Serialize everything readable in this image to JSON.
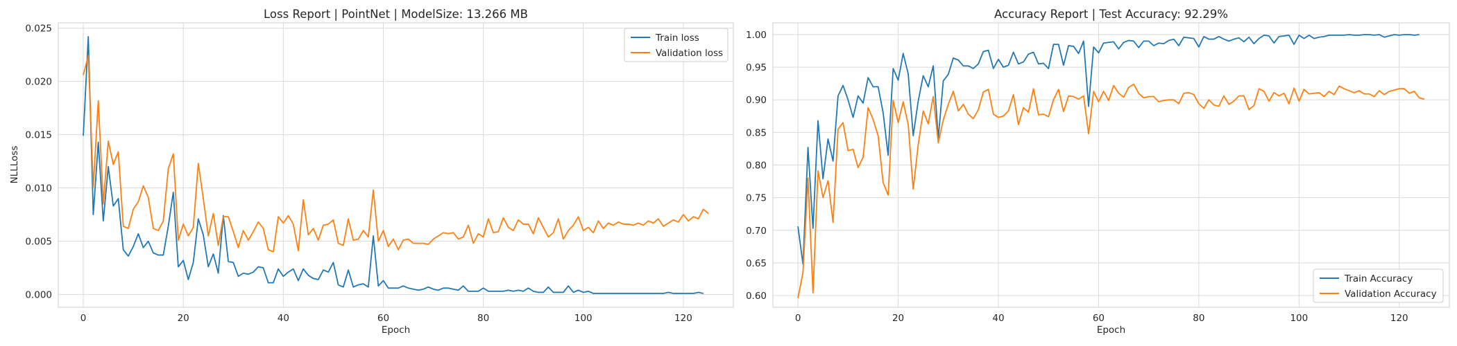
{
  "chart_data": [
    {
      "type": "line",
      "title": "Loss Report | PointNet | ModelSize: 13.266 MB",
      "xlabel": "Epoch",
      "ylabel": "NLLLoss",
      "xlim": [
        -5,
        130
      ],
      "ylim": [
        -0.0012,
        0.0255
      ],
      "xticks": [
        0,
        20,
        40,
        60,
        80,
        100,
        120
      ],
      "yticks": [
        0.0,
        0.005,
        0.01,
        0.015,
        0.02,
        0.025
      ],
      "ytick_labels": [
        "0.000",
        "0.005",
        "0.010",
        "0.015",
        "0.020",
        "0.025"
      ],
      "grid": true,
      "legend_position": "top-right",
      "series": [
        {
          "name": "Train loss",
          "color": "#1f77b4",
          "values": [
            0.0149,
            0.0242,
            0.0075,
            0.0143,
            0.0069,
            0.012,
            0.0083,
            0.009,
            0.0042,
            0.0036,
            0.0045,
            0.0057,
            0.0044,
            0.005,
            0.0039,
            0.0037,
            0.0037,
            0.0064,
            0.0096,
            0.0026,
            0.0032,
            0.0014,
            0.003,
            0.0071,
            0.0056,
            0.0026,
            0.0038,
            0.002,
            0.0074,
            0.0031,
            0.003,
            0.0017,
            0.002,
            0.0019,
            0.0021,
            0.0026,
            0.0025,
            0.0011,
            0.0011,
            0.0024,
            0.0017,
            0.0021,
            0.0024,
            0.0013,
            0.0024,
            0.0018,
            0.0015,
            0.0014,
            0.0023,
            0.0021,
            0.003,
            0.0009,
            0.0007,
            0.0023,
            0.0007,
            0.0009,
            0.001,
            0.0007,
            0.0055,
            0.0008,
            0.0013,
            0.0006,
            0.0006,
            0.0006,
            0.0008,
            0.0006,
            0.0005,
            0.0004,
            0.0005,
            0.0007,
            0.0005,
            0.0004,
            0.0006,
            0.0006,
            0.0005,
            0.0004,
            0.0008,
            0.0003,
            0.0003,
            0.0003,
            0.0006,
            0.0003,
            0.0003,
            0.0003,
            0.0003,
            0.0004,
            0.0003,
            0.0004,
            0.0003,
            0.0006,
            0.0003,
            0.0002,
            0.0002,
            0.0007,
            0.0002,
            0.0002,
            0.0002,
            0.0008,
            0.0002,
            0.0004,
            0.0002,
            0.0003,
            0.0001,
            0.0001,
            0.0001,
            0.0001,
            0.0001,
            0.0001,
            0.0001,
            0.0001,
            0.0001,
            0.0001,
            0.0001,
            0.0001,
            0.0001,
            0.0001,
            0.0001,
            0.0002,
            0.0001,
            0.0001,
            0.0001,
            0.0001,
            0.0001,
            0.0002,
            0.0001
          ]
        },
        {
          "name": "Validation loss",
          "color": "#ff7f0e",
          "values": [
            0.0206,
            0.0224,
            0.0101,
            0.0182,
            0.0085,
            0.0144,
            0.0122,
            0.0134,
            0.0064,
            0.0062,
            0.008,
            0.0087,
            0.0102,
            0.0091,
            0.0062,
            0.006,
            0.0069,
            0.0118,
            0.0132,
            0.0051,
            0.0066,
            0.0055,
            0.0063,
            0.0123,
            0.009,
            0.0055,
            0.0076,
            0.0046,
            0.0073,
            0.0073,
            0.0059,
            0.0044,
            0.006,
            0.0051,
            0.0059,
            0.0068,
            0.0062,
            0.0042,
            0.004,
            0.0073,
            0.0067,
            0.0074,
            0.0066,
            0.0041,
            0.0089,
            0.0056,
            0.0062,
            0.0051,
            0.0065,
            0.0066,
            0.007,
            0.0048,
            0.0046,
            0.0071,
            0.0051,
            0.0052,
            0.006,
            0.0054,
            0.0098,
            0.005,
            0.006,
            0.0045,
            0.0052,
            0.0042,
            0.0051,
            0.0052,
            0.0048,
            0.0048,
            0.0048,
            0.0047,
            0.0052,
            0.0055,
            0.0058,
            0.0057,
            0.0058,
            0.0052,
            0.0054,
            0.0065,
            0.0048,
            0.0057,
            0.0054,
            0.0071,
            0.0058,
            0.0059,
            0.0072,
            0.0063,
            0.006,
            0.007,
            0.0066,
            0.0066,
            0.0057,
            0.0072,
            0.0063,
            0.0054,
            0.0058,
            0.0071,
            0.0052,
            0.006,
            0.0065,
            0.0073,
            0.006,
            0.0063,
            0.0058,
            0.0069,
            0.0062,
            0.0067,
            0.0065,
            0.0068,
            0.0066,
            0.0066,
            0.0065,
            0.0067,
            0.0065,
            0.0069,
            0.0067,
            0.0071,
            0.0064,
            0.0067,
            0.007,
            0.0068,
            0.0075,
            0.0069,
            0.0073,
            0.0071,
            0.008,
            0.0076
          ]
        }
      ]
    },
    {
      "type": "line",
      "title": "Accuracy Report | Test Accuracy: 92.29%",
      "xlabel": "Epoch",
      "ylabel": "",
      "xlim": [
        -5,
        130
      ],
      "ylim": [
        0.582,
        1.018
      ],
      "xticks": [
        0,
        20,
        40,
        60,
        80,
        100,
        120
      ],
      "yticks": [
        0.6,
        0.65,
        0.7,
        0.75,
        0.8,
        0.85,
        0.9,
        0.95,
        1.0
      ],
      "ytick_labels": [
        "0.60",
        "0.65",
        "0.70",
        "0.75",
        "0.80",
        "0.85",
        "0.90",
        "0.95",
        "1.00"
      ],
      "grid": true,
      "legend_position": "bottom-right",
      "series": [
        {
          "name": "Train Accuracy",
          "color": "#1f77b4",
          "values": [
            0.706,
            0.648,
            0.827,
            0.703,
            0.868,
            0.779,
            0.84,
            0.806,
            0.906,
            0.922,
            0.9,
            0.873,
            0.906,
            0.895,
            0.934,
            0.92,
            0.92,
            0.88,
            0.815,
            0.948,
            0.93,
            0.971,
            0.94,
            0.845,
            0.898,
            0.937,
            0.92,
            0.952,
            0.841,
            0.929,
            0.939,
            0.964,
            0.961,
            0.952,
            0.952,
            0.948,
            0.955,
            0.974,
            0.976,
            0.948,
            0.962,
            0.95,
            0.953,
            0.973,
            0.955,
            0.958,
            0.97,
            0.973,
            0.955,
            0.956,
            0.948,
            0.985,
            0.985,
            0.953,
            0.983,
            0.982,
            0.971,
            0.99,
            0.89,
            0.981,
            0.972,
            0.987,
            0.988,
            0.989,
            0.978,
            0.988,
            0.991,
            0.99,
            0.98,
            0.99,
            0.99,
            0.983,
            0.987,
            0.986,
            0.991,
            0.993,
            0.983,
            0.996,
            0.995,
            0.994,
            0.981,
            0.997,
            0.993,
            0.993,
            0.997,
            0.993,
            0.99,
            0.993,
            0.995,
            0.989,
            0.996,
            0.986,
            0.994,
            0.999,
            0.998,
            0.987,
            0.997,
            0.998,
            0.999,
            0.985,
            0.999,
            0.994,
            0.999,
            0.994,
            0.996,
            0.997,
            0.999,
            0.999,
            0.999,
            0.999,
            1.0,
            0.999,
            0.999,
            1.0,
            1.0,
            0.999,
            1.0,
            0.996,
            0.998,
            1.0,
            0.999,
            1.0,
            1.0,
            0.999,
            1.0
          ]
        },
        {
          "name": "Validation Accuracy",
          "color": "#ff7f0e",
          "values": [
            0.596,
            0.635,
            0.78,
            0.604,
            0.791,
            0.75,
            0.776,
            0.712,
            0.855,
            0.865,
            0.822,
            0.824,
            0.796,
            0.812,
            0.888,
            0.87,
            0.845,
            0.773,
            0.754,
            0.899,
            0.865,
            0.897,
            0.862,
            0.763,
            0.831,
            0.883,
            0.863,
            0.905,
            0.834,
            0.869,
            0.893,
            0.913,
            0.883,
            0.893,
            0.878,
            0.871,
            0.885,
            0.912,
            0.916,
            0.878,
            0.873,
            0.875,
            0.883,
            0.908,
            0.862,
            0.888,
            0.881,
            0.917,
            0.877,
            0.878,
            0.874,
            0.9,
            0.916,
            0.882,
            0.906,
            0.905,
            0.901,
            0.906,
            0.848,
            0.913,
            0.897,
            0.913,
            0.899,
            0.922,
            0.91,
            0.904,
            0.919,
            0.924,
            0.91,
            0.903,
            0.905,
            0.905,
            0.897,
            0.899,
            0.9,
            0.9,
            0.894,
            0.91,
            0.911,
            0.908,
            0.894,
            0.887,
            0.9,
            0.892,
            0.89,
            0.906,
            0.893,
            0.898,
            0.906,
            0.906,
            0.885,
            0.891,
            0.917,
            0.913,
            0.898,
            0.911,
            0.906,
            0.91,
            0.894,
            0.918,
            0.898,
            0.916,
            0.909,
            0.91,
            0.911,
            0.905,
            0.913,
            0.908,
            0.921,
            0.917,
            0.914,
            0.911,
            0.914,
            0.909,
            0.909,
            0.905,
            0.914,
            0.908,
            0.913,
            0.915,
            0.917,
            0.917,
            0.91,
            0.913,
            0.903,
            0.901
          ]
        }
      ]
    }
  ]
}
